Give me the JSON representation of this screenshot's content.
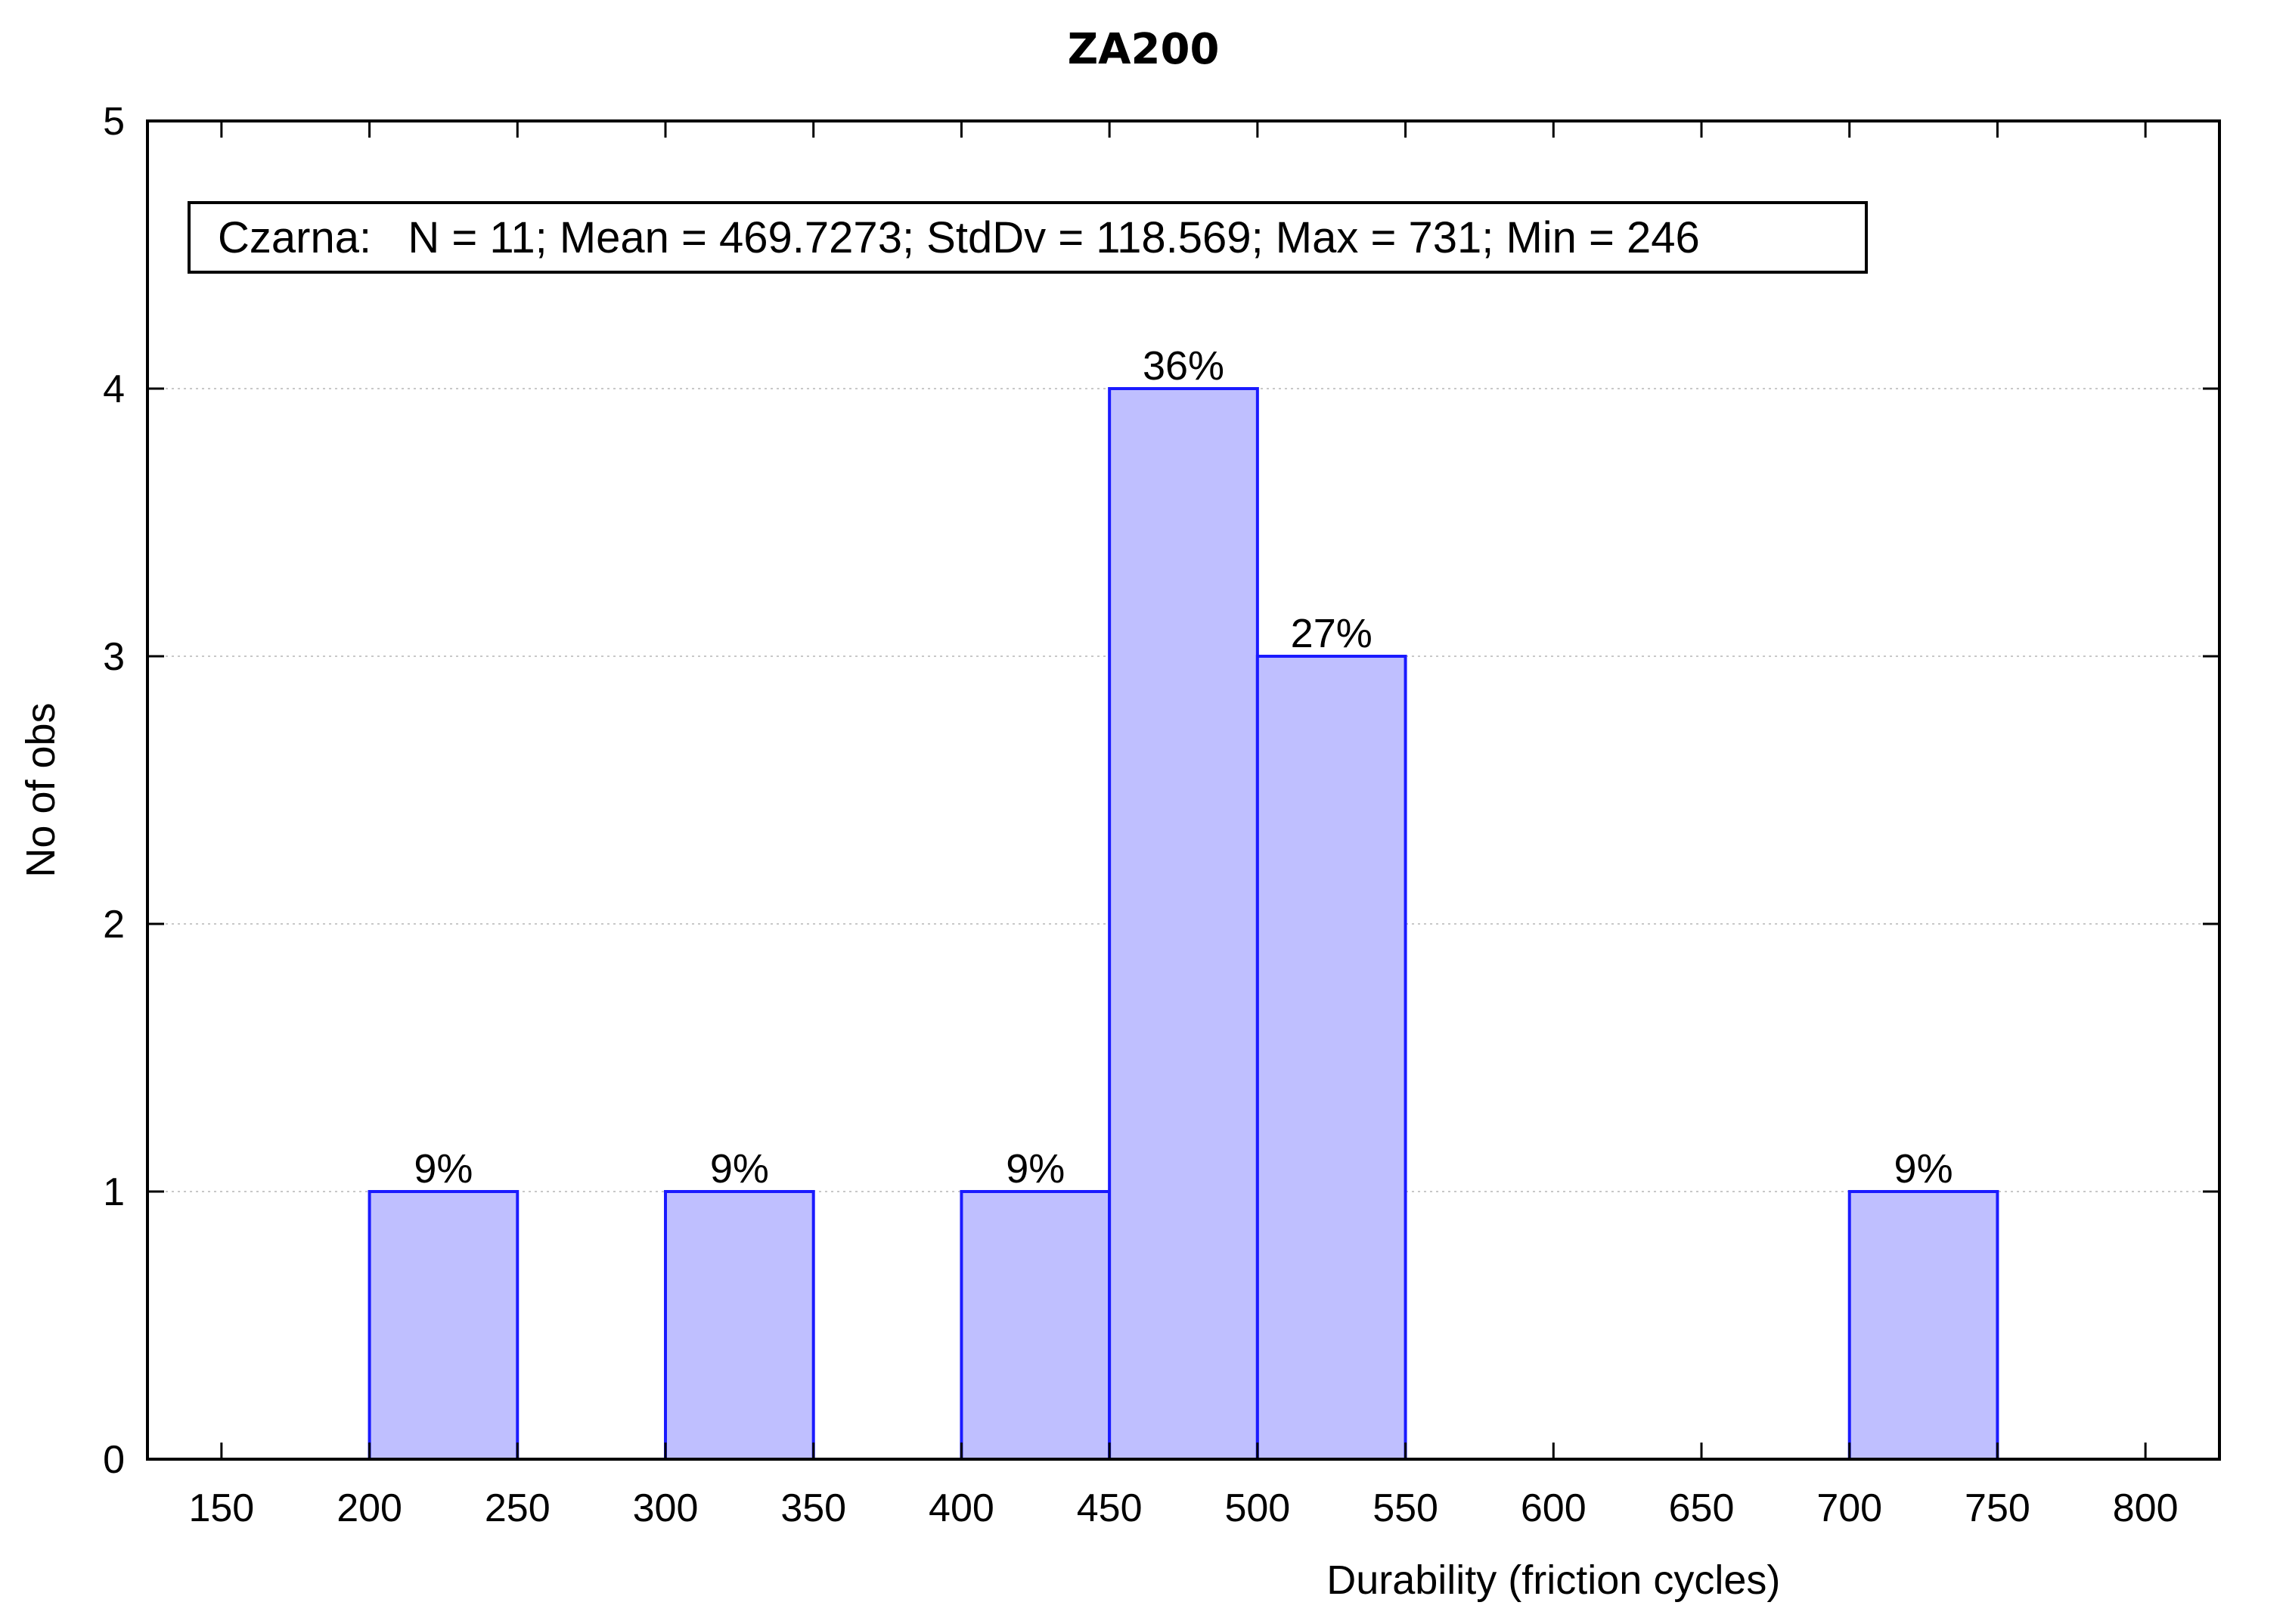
{
  "chart_data": {
    "type": "bar",
    "title": "ZA200",
    "xlabel": "Durability (friction cycles)",
    "ylabel": "No of obs",
    "xlim": [
      125,
      825
    ],
    "ylim": [
      0,
      5
    ],
    "x_ticks": [
      150,
      200,
      250,
      300,
      350,
      400,
      450,
      500,
      550,
      600,
      650,
      700,
      750,
      800
    ],
    "y_ticks": [
      0,
      1,
      2,
      3,
      4,
      5
    ],
    "grid": true,
    "bins": [
      {
        "x0": 200,
        "x1": 250,
        "value": 1,
        "label": "9%"
      },
      {
        "x0": 300,
        "x1": 350,
        "value": 1,
        "label": "9%"
      },
      {
        "x0": 400,
        "x1": 450,
        "value": 1,
        "label": "9%"
      },
      {
        "x0": 450,
        "x1": 500,
        "value": 4,
        "label": "36%"
      },
      {
        "x0": 500,
        "x1": 550,
        "value": 3,
        "label": "27%"
      },
      {
        "x0": 700,
        "x1": 750,
        "value": 1,
        "label": "9%"
      }
    ],
    "stats_box": "Czarna:   N = 11; Mean = 469.7273; StdDv = 118.569; Max = 731; Min = 246",
    "colors": {
      "bar_fill": "#bfbfff",
      "bar_stroke": "#1a1aff",
      "grid": "#c8c8c8",
      "axis": "#000000"
    }
  }
}
